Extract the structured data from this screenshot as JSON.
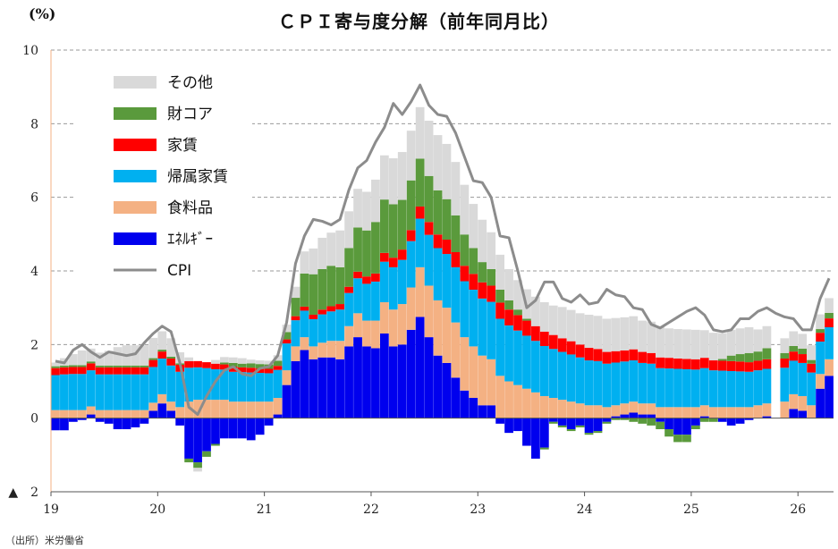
{
  "title": "ＣＰＩ寄与度分解（前年同月比）",
  "y_unit": "(%)",
  "source": "（出所）米労働省",
  "chart_data": {
    "type": "bar",
    "stacked": true,
    "title": "ＣＰＩ寄与度分解（前年同月比）",
    "ylabel": "(%)",
    "ylim": [
      -2,
      10
    ],
    "yticks": [
      {
        "value": 10,
        "label": "10"
      },
      {
        "value": 8,
        "label": "8"
      },
      {
        "value": 6,
        "label": "6"
      },
      {
        "value": 4,
        "label": "4"
      },
      {
        "value": 2,
        "label": "2"
      },
      {
        "value": 0,
        "label": "0"
      },
      {
        "value": -2,
        "label": "▲　2"
      }
    ],
    "xticks": [
      "19",
      "20",
      "21",
      "22",
      "23",
      "24",
      "25",
      "26"
    ],
    "months": [
      "2019-01",
      "2019-02",
      "2019-03",
      "2019-04",
      "2019-05",
      "2019-06",
      "2019-07",
      "2019-08",
      "2019-09",
      "2019-10",
      "2019-11",
      "2019-12",
      "2020-01",
      "2020-02",
      "2020-03",
      "2020-04",
      "2020-05",
      "2020-06",
      "2020-07",
      "2020-08",
      "2020-09",
      "2020-10",
      "2020-11",
      "2020-12",
      "2021-01",
      "2021-02",
      "2021-03",
      "2021-04",
      "2021-05",
      "2021-06",
      "2021-07",
      "2021-08",
      "2021-09",
      "2021-10",
      "2021-11",
      "2021-12",
      "2022-01",
      "2022-02",
      "2022-03",
      "2022-04",
      "2022-05",
      "2022-06",
      "2022-07",
      "2022-08",
      "2022-09",
      "2022-10",
      "2022-11",
      "2022-12",
      "2023-01",
      "2023-02",
      "2023-03",
      "2023-04",
      "2023-05",
      "2023-06",
      "2023-07",
      "2023-08",
      "2023-09",
      "2023-10",
      "2023-11",
      "2023-12",
      "2024-01",
      "2024-02",
      "2024-03",
      "2024-04",
      "2024-05",
      "2024-06",
      "2024-07",
      "2024-08",
      "2024-09",
      "2024-10",
      "2024-11",
      "2024-12",
      "2025-01",
      "2025-02",
      "2025-03",
      "2025-04",
      "2025-05",
      "2025-06",
      "2025-07",
      "2025-08",
      "2025-09",
      "2025-10",
      "2025-11",
      "2025-12",
      "2026-01",
      "2026-02",
      "2026-03",
      "2026-04"
    ],
    "gaps": [
      "2025-10"
    ],
    "legend_position": "top-left",
    "grid": "horizontal-dashed",
    "series": [
      {
        "name": "ｴﾈﾙｷﾞｰ",
        "color": "#0000ee",
        "values": [
          -0.33,
          -0.33,
          -0.1,
          -0.05,
          0.1,
          -0.1,
          -0.15,
          -0.3,
          -0.3,
          -0.25,
          -0.15,
          0.2,
          0.4,
          0.2,
          -0.2,
          -1.1,
          -1.2,
          -0.9,
          -0.7,
          -0.55,
          -0.55,
          -0.55,
          -0.6,
          -0.45,
          -0.2,
          0.1,
          0.9,
          1.55,
          1.85,
          1.6,
          1.65,
          1.65,
          1.6,
          1.95,
          2.2,
          1.95,
          1.9,
          2.3,
          1.95,
          2.0,
          2.4,
          2.75,
          2.2,
          1.7,
          1.5,
          1.1,
          0.75,
          0.55,
          0.35,
          0.35,
          -0.15,
          -0.4,
          -0.35,
          -0.75,
          -1.1,
          -0.8,
          -0.1,
          -0.2,
          -0.3,
          -0.2,
          -0.4,
          -0.35,
          -0.1,
          0.05,
          0.1,
          0.15,
          0.1,
          0.1,
          -0.1,
          -0.3,
          -0.45,
          -0.45,
          -0.2,
          0.05,
          0.0,
          -0.1,
          -0.2,
          -0.15,
          -0.05,
          0.0,
          0.05,
          0.15,
          0.0,
          0.25,
          0.2,
          0.0,
          0.8,
          1.15
        ]
      },
      {
        "name": "食料品",
        "color": "#f4b183",
        "values": [
          0.22,
          0.22,
          0.22,
          0.22,
          0.22,
          0.22,
          0.22,
          0.22,
          0.22,
          0.22,
          0.22,
          0.22,
          0.25,
          0.25,
          0.3,
          0.45,
          0.5,
          0.5,
          0.5,
          0.5,
          0.45,
          0.45,
          0.45,
          0.45,
          0.45,
          0.45,
          0.4,
          0.4,
          0.35,
          0.35,
          0.4,
          0.45,
          0.5,
          0.55,
          0.65,
          0.7,
          0.75,
          0.85,
          1.0,
          1.1,
          1.15,
          1.35,
          1.4,
          1.5,
          1.5,
          1.5,
          1.45,
          1.4,
          1.35,
          1.25,
          1.15,
          1.0,
          0.9,
          0.8,
          0.7,
          0.6,
          0.55,
          0.5,
          0.45,
          0.4,
          0.35,
          0.35,
          0.3,
          0.3,
          0.3,
          0.3,
          0.3,
          0.3,
          0.3,
          0.3,
          0.3,
          0.3,
          0.3,
          0.3,
          0.3,
          0.3,
          0.3,
          0.3,
          0.3,
          0.35,
          0.35,
          0.4,
          0.45,
          0.4,
          0.4,
          0.35,
          0.4,
          0.45
        ]
      },
      {
        "name": "帰属家賃",
        "color": "#00b0f0",
        "values": [
          0.95,
          0.97,
          0.98,
          0.98,
          0.98,
          0.97,
          0.97,
          0.97,
          0.97,
          0.97,
          0.97,
          0.97,
          0.97,
          0.98,
          0.96,
          0.92,
          0.88,
          0.86,
          0.83,
          0.82,
          0.81,
          0.8,
          0.79,
          0.78,
          0.77,
          0.76,
          0.73,
          0.71,
          0.72,
          0.74,
          0.77,
          0.8,
          0.85,
          0.9,
          0.95,
          1.0,
          1.06,
          1.1,
          1.15,
          1.2,
          1.26,
          1.32,
          1.38,
          1.42,
          1.46,
          1.5,
          1.52,
          1.54,
          1.55,
          1.56,
          1.55,
          1.52,
          1.48,
          1.44,
          1.4,
          1.36,
          1.33,
          1.3,
          1.28,
          1.25,
          1.22,
          1.2,
          1.18,
          1.16,
          1.14,
          1.12,
          1.1,
          1.08,
          1.06,
          1.05,
          1.04,
          1.03,
          1.02,
          1.01,
          1.0,
          0.99,
          0.98,
          0.97,
          0.96,
          0.95,
          0.94,
          0.93,
          0.92,
          0.91,
          0.9,
          0.89,
          0.88,
          0.87
        ]
      },
      {
        "name": "家賃",
        "color": "#ff0000",
        "values": [
          0.19,
          0.19,
          0.19,
          0.19,
          0.19,
          0.19,
          0.19,
          0.19,
          0.19,
          0.19,
          0.19,
          0.19,
          0.19,
          0.19,
          0.19,
          0.18,
          0.17,
          0.16,
          0.15,
          0.14,
          0.14,
          0.13,
          0.13,
          0.12,
          0.12,
          0.11,
          0.11,
          0.11,
          0.11,
          0.12,
          0.13,
          0.14,
          0.15,
          0.17,
          0.18,
          0.2,
          0.22,
          0.24,
          0.26,
          0.28,
          0.3,
          0.33,
          0.35,
          0.37,
          0.39,
          0.41,
          0.42,
          0.43,
          0.44,
          0.44,
          0.44,
          0.43,
          0.42,
          0.41,
          0.4,
          0.39,
          0.38,
          0.37,
          0.36,
          0.35,
          0.34,
          0.33,
          0.32,
          0.31,
          0.3,
          0.3,
          0.3,
          0.29,
          0.29,
          0.29,
          0.28,
          0.28,
          0.28,
          0.28,
          0.27,
          0.27,
          0.27,
          0.27,
          0.26,
          0.26,
          0.26,
          0.25,
          0.25,
          0.25,
          0.24,
          0.24,
          0.24,
          0.24
        ]
      },
      {
        "name": "財コア",
        "color": "#5a9a3c",
        "values": [
          0.05,
          0.05,
          0.05,
          0.05,
          0.05,
          0.05,
          0.05,
          0.05,
          0.05,
          0.05,
          0.05,
          0.05,
          0.05,
          0.05,
          0.04,
          -0.1,
          -0.15,
          -0.15,
          -0.05,
          0.05,
          0.1,
          0.1,
          0.12,
          0.12,
          0.12,
          0.14,
          0.2,
          0.5,
          0.9,
          1.1,
          1.1,
          1.1,
          1.0,
          1.05,
          1.2,
          1.25,
          1.4,
          1.45,
          1.45,
          1.35,
          1.35,
          1.3,
          1.25,
          1.2,
          1.1,
          1.0,
          0.85,
          0.7,
          0.55,
          0.45,
          0.35,
          0.25,
          0.15,
          0.05,
          0.0,
          -0.05,
          -0.05,
          -0.05,
          -0.05,
          -0.05,
          -0.05,
          -0.05,
          -0.05,
          -0.05,
          -0.05,
          -0.1,
          -0.15,
          -0.2,
          -0.2,
          -0.2,
          -0.2,
          -0.2,
          -0.1,
          -0.1,
          -0.1,
          0.05,
          0.15,
          0.2,
          0.25,
          0.25,
          0.3,
          0.35,
          0.15,
          0.15,
          0.15,
          0.1,
          0.1,
          0.15
        ]
      },
      {
        "name": "その他",
        "color": "#d9d9d9",
        "values": [
          0.1,
          0.2,
          0.3,
          0.4,
          0.35,
          0.35,
          0.4,
          0.5,
          0.55,
          0.55,
          0.55,
          0.55,
          0.5,
          0.5,
          0.3,
          0.1,
          -0.1,
          0.0,
          0.1,
          0.15,
          0.15,
          0.15,
          0.1,
          0.1,
          0.1,
          0.15,
          0.2,
          0.3,
          0.6,
          0.7,
          0.85,
          0.9,
          1.0,
          1.0,
          1.05,
          1.05,
          1.15,
          1.2,
          1.25,
          1.3,
          1.35,
          1.4,
          1.5,
          1.5,
          1.5,
          1.45,
          1.35,
          1.2,
          1.15,
          1.0,
          0.95,
          0.85,
          0.8,
          0.8,
          0.8,
          0.8,
          0.8,
          0.85,
          0.85,
          0.85,
          0.9,
          0.9,
          0.9,
          0.9,
          0.9,
          0.9,
          0.85,
          0.85,
          0.85,
          0.8,
          0.8,
          0.8,
          0.8,
          0.75,
          0.75,
          0.7,
          0.7,
          0.7,
          0.7,
          0.6,
          0.6,
          0.55,
          0.4,
          0.4,
          0.4,
          0.4,
          0.4,
          0.4
        ]
      }
    ],
    "cpi": {
      "name": "CPI",
      "color": "#8c8c8c",
      "values": [
        1.55,
        1.5,
        1.85,
        2.0,
        1.8,
        1.65,
        1.8,
        1.75,
        1.7,
        1.75,
        2.05,
        2.3,
        2.5,
        2.35,
        1.5,
        0.3,
        0.1,
        0.6,
        1.0,
        1.3,
        1.4,
        1.2,
        1.15,
        1.35,
        1.4,
        1.7,
        2.6,
        4.2,
        4.95,
        5.4,
        5.35,
        5.25,
        5.4,
        6.2,
        6.8,
        7.0,
        7.5,
        7.9,
        8.55,
        8.25,
        8.6,
        9.05,
        8.5,
        8.25,
        8.2,
        7.75,
        7.1,
        6.45,
        6.4,
        6.0,
        4.95,
        4.9,
        4.0,
        3.0,
        3.2,
        3.7,
        3.7,
        3.25,
        3.15,
        3.35,
        3.1,
        3.15,
        3.5,
        3.35,
        3.3,
        3.0,
        2.95,
        2.55,
        2.45,
        2.6,
        2.75,
        2.9,
        3.0,
        2.8,
        2.4,
        2.35,
        2.4,
        2.7,
        2.7,
        2.9,
        3.0,
        2.85,
        2.75,
        2.7,
        2.4,
        2.4,
        3.25,
        3.8
      ]
    }
  }
}
